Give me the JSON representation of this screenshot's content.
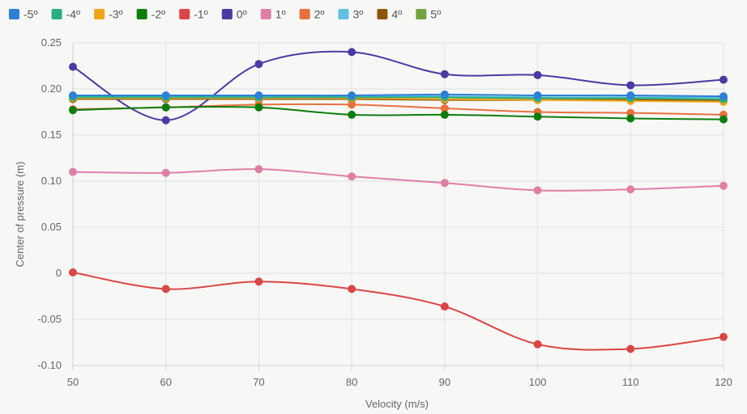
{
  "chart_data": {
    "type": "line",
    "title": "",
    "xlabel": "Velocity (m/s)",
    "ylabel": "Center of pressure (m)",
    "x": [
      50,
      60,
      70,
      80,
      90,
      100,
      110,
      120
    ],
    "xlim": [
      50,
      120
    ],
    "ylim": [
      -0.1,
      0.25
    ],
    "x_ticks": [
      "50",
      "60",
      "70",
      "80",
      "90",
      "100",
      "110",
      "120"
    ],
    "y_ticks": [
      "-0.10",
      "-0.05",
      "0",
      "0.05",
      "0.10",
      "0.15",
      "0.20",
      "0.25"
    ],
    "y_tick_values": [
      -0.1,
      -0.05,
      0,
      0.05,
      0.1,
      0.15,
      0.2,
      0.25
    ],
    "grid": true,
    "legend_position": "top-left",
    "series": [
      {
        "name": "-5º",
        "color": "#2e7fd6",
        "values": [
          0.193,
          0.193,
          0.193,
          0.193,
          0.194,
          0.193,
          0.193,
          0.192
        ]
      },
      {
        "name": "-4º",
        "color": "#2baf82",
        "values": [
          0.191,
          0.191,
          0.191,
          0.191,
          0.191,
          0.19,
          0.19,
          0.189
        ]
      },
      {
        "name": "-3º",
        "color": "#eea61a",
        "values": [
          0.19,
          0.19,
          0.19,
          0.19,
          0.189,
          0.188,
          0.187,
          0.186
        ]
      },
      {
        "name": "-2º",
        "color": "#0d7d0d",
        "values": [
          0.177,
          0.18,
          0.18,
          0.172,
          0.172,
          0.17,
          0.168,
          0.167
        ]
      },
      {
        "name": "-1º",
        "color": "#d94646",
        "values": [
          0.001,
          -0.017,
          -0.009,
          -0.017,
          -0.036,
          -0.077,
          -0.082,
          -0.069
        ]
      },
      {
        "name": "0º",
        "color": "#4b3aa3",
        "values": [
          0.224,
          0.166,
          0.227,
          0.24,
          0.216,
          0.215,
          0.204,
          0.21
        ]
      },
      {
        "name": "1º",
        "color": "#e07fa6",
        "values": [
          0.11,
          0.109,
          0.113,
          0.105,
          0.098,
          0.09,
          0.091,
          0.095
        ]
      },
      {
        "name": "2º",
        "color": "#e8703e",
        "values": [
          0.178,
          0.18,
          0.183,
          0.183,
          0.179,
          0.175,
          0.174,
          0.172
        ]
      },
      {
        "name": "3º",
        "color": "#5fc1e2",
        "values": [
          0.192,
          0.192,
          0.192,
          0.192,
          0.192,
          0.191,
          0.191,
          0.191
        ]
      },
      {
        "name": "4º",
        "color": "#8d5607",
        "values": [
          0.189,
          0.189,
          0.189,
          0.189,
          0.188,
          0.188,
          0.188,
          0.187
        ]
      },
      {
        "name": "5º",
        "color": "#73a23e",
        "values": [
          0.19,
          0.19,
          0.19,
          0.19,
          0.189,
          0.189,
          0.189,
          0.188
        ]
      }
    ]
  }
}
